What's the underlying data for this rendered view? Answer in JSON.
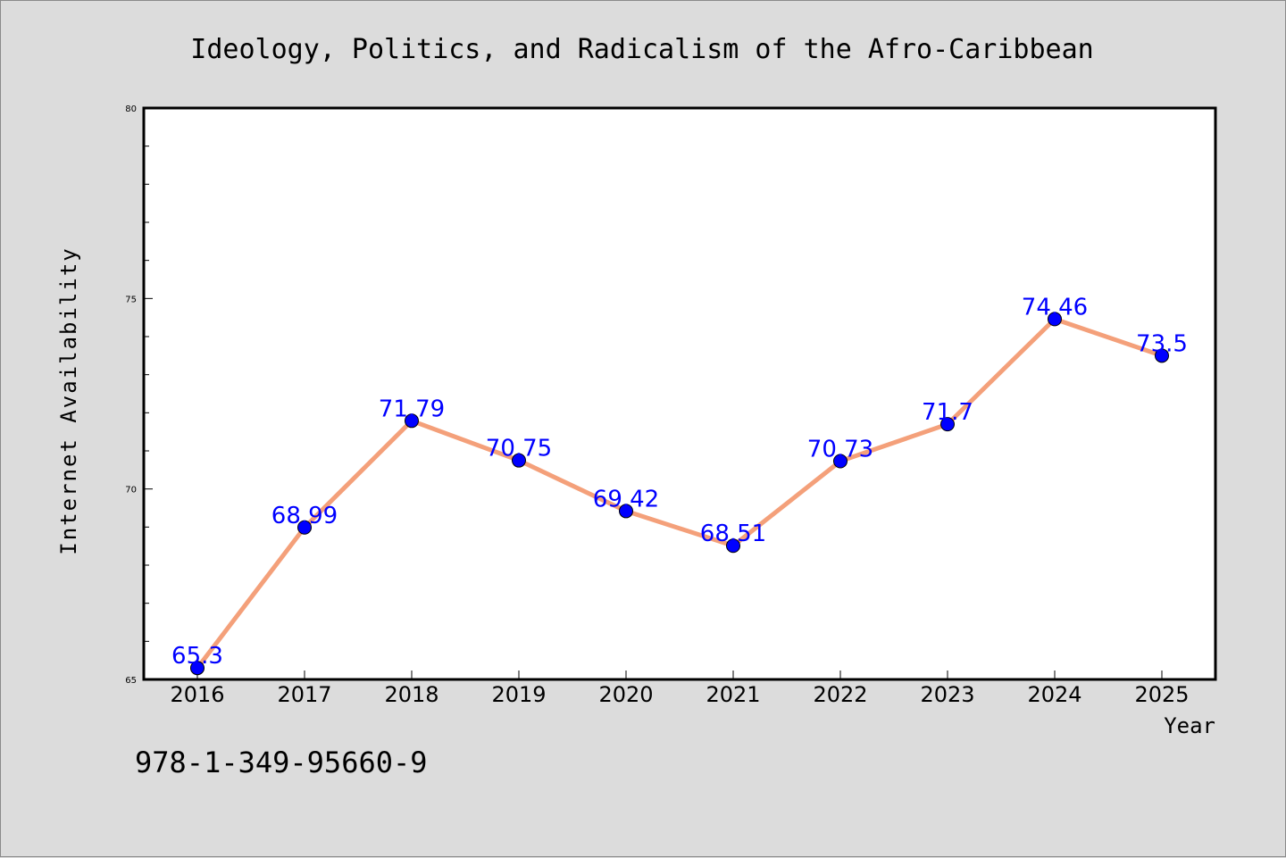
{
  "chart_data": {
    "type": "line",
    "title": "Ideology, Politics, and Radicalism of the Afro-Caribbean",
    "xlabel": "Year",
    "ylabel": "Internet Availability",
    "categories": [
      "2016",
      "2017",
      "2018",
      "2019",
      "2020",
      "2021",
      "2022",
      "2023",
      "2024",
      "2025"
    ],
    "values": [
      65.3,
      68.99,
      71.79,
      70.75,
      69.42,
      68.51,
      70.73,
      71.7,
      74.46,
      73.5
    ],
    "data_labels": [
      "65.3",
      "68.99",
      "71.79",
      "70.75",
      "69.42",
      "68.51",
      "70.73",
      "71.7",
      "74.46",
      "73.5"
    ],
    "ylim": [
      65,
      80
    ],
    "yticks": [
      65,
      70,
      75,
      80
    ],
    "ytick_labels": [
      "65",
      "70",
      "75",
      "80"
    ],
    "grid": false,
    "line_color": "#f4a07a",
    "marker_color": "#0000ff",
    "label_color": "#0000ff"
  },
  "footer": {
    "isbn": "978-1-349-95660-9"
  }
}
